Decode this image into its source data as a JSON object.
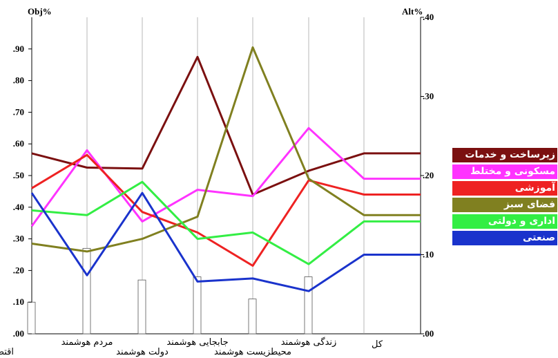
{
  "chart_data": {
    "type": "line",
    "left_axis_label": "Obj%",
    "right_axis_label": "Alt%",
    "left_ticks": [
      ".00",
      ".10",
      ".20",
      ".30",
      ".40",
      ".50",
      ".60",
      ".70",
      ".80",
      ".90"
    ],
    "right_ticks": [
      ".00",
      ".10",
      ".20",
      ".30",
      ".40"
    ],
    "ylim_left": [
      0,
      1.0
    ],
    "ylim_right": [
      0,
      0.4
    ],
    "categories": [
      "اقتصاد هوشمند",
      "مردم هوشمند",
      "دولت هوشمند",
      "جابجایی هوشمند",
      "محیطزیست هوشمند",
      "زندگی هوشمند",
      "کل"
    ],
    "bars_obj": [
      0.1,
      0.27,
      0.17,
      0.18,
      0.11,
      0.18
    ],
    "series": [
      {
        "name": "زیرساخت و خدمات",
        "color": "#7b1010",
        "values": [
          0.57,
          0.525,
          0.522,
          0.875,
          0.44,
          0.515,
          0.57
        ]
      },
      {
        "name": "مسکونی و مختلط",
        "color": "#ff33ff",
        "values": [
          0.34,
          0.58,
          0.355,
          0.455,
          0.435,
          0.65,
          0.49
        ]
      },
      {
        "name": "آموزشی",
        "color": "#ee2222",
        "values": [
          0.46,
          0.565,
          0.385,
          0.32,
          0.215,
          0.485,
          0.44
        ]
      },
      {
        "name": "فضای سبز",
        "color": "#808020",
        "values": [
          0.285,
          0.26,
          0.3,
          0.37,
          0.905,
          0.49,
          0.375
        ]
      },
      {
        "name": "اداری و دولتی",
        "color": "#33ee44",
        "values": [
          0.39,
          0.375,
          0.48,
          0.3,
          0.32,
          0.22,
          0.355
        ]
      },
      {
        "name": "صنعتی",
        "color": "#1a33cc",
        "values": [
          0.445,
          0.185,
          0.445,
          0.165,
          0.175,
          0.135,
          0.25
        ]
      }
    ],
    "legend_position": "right"
  }
}
